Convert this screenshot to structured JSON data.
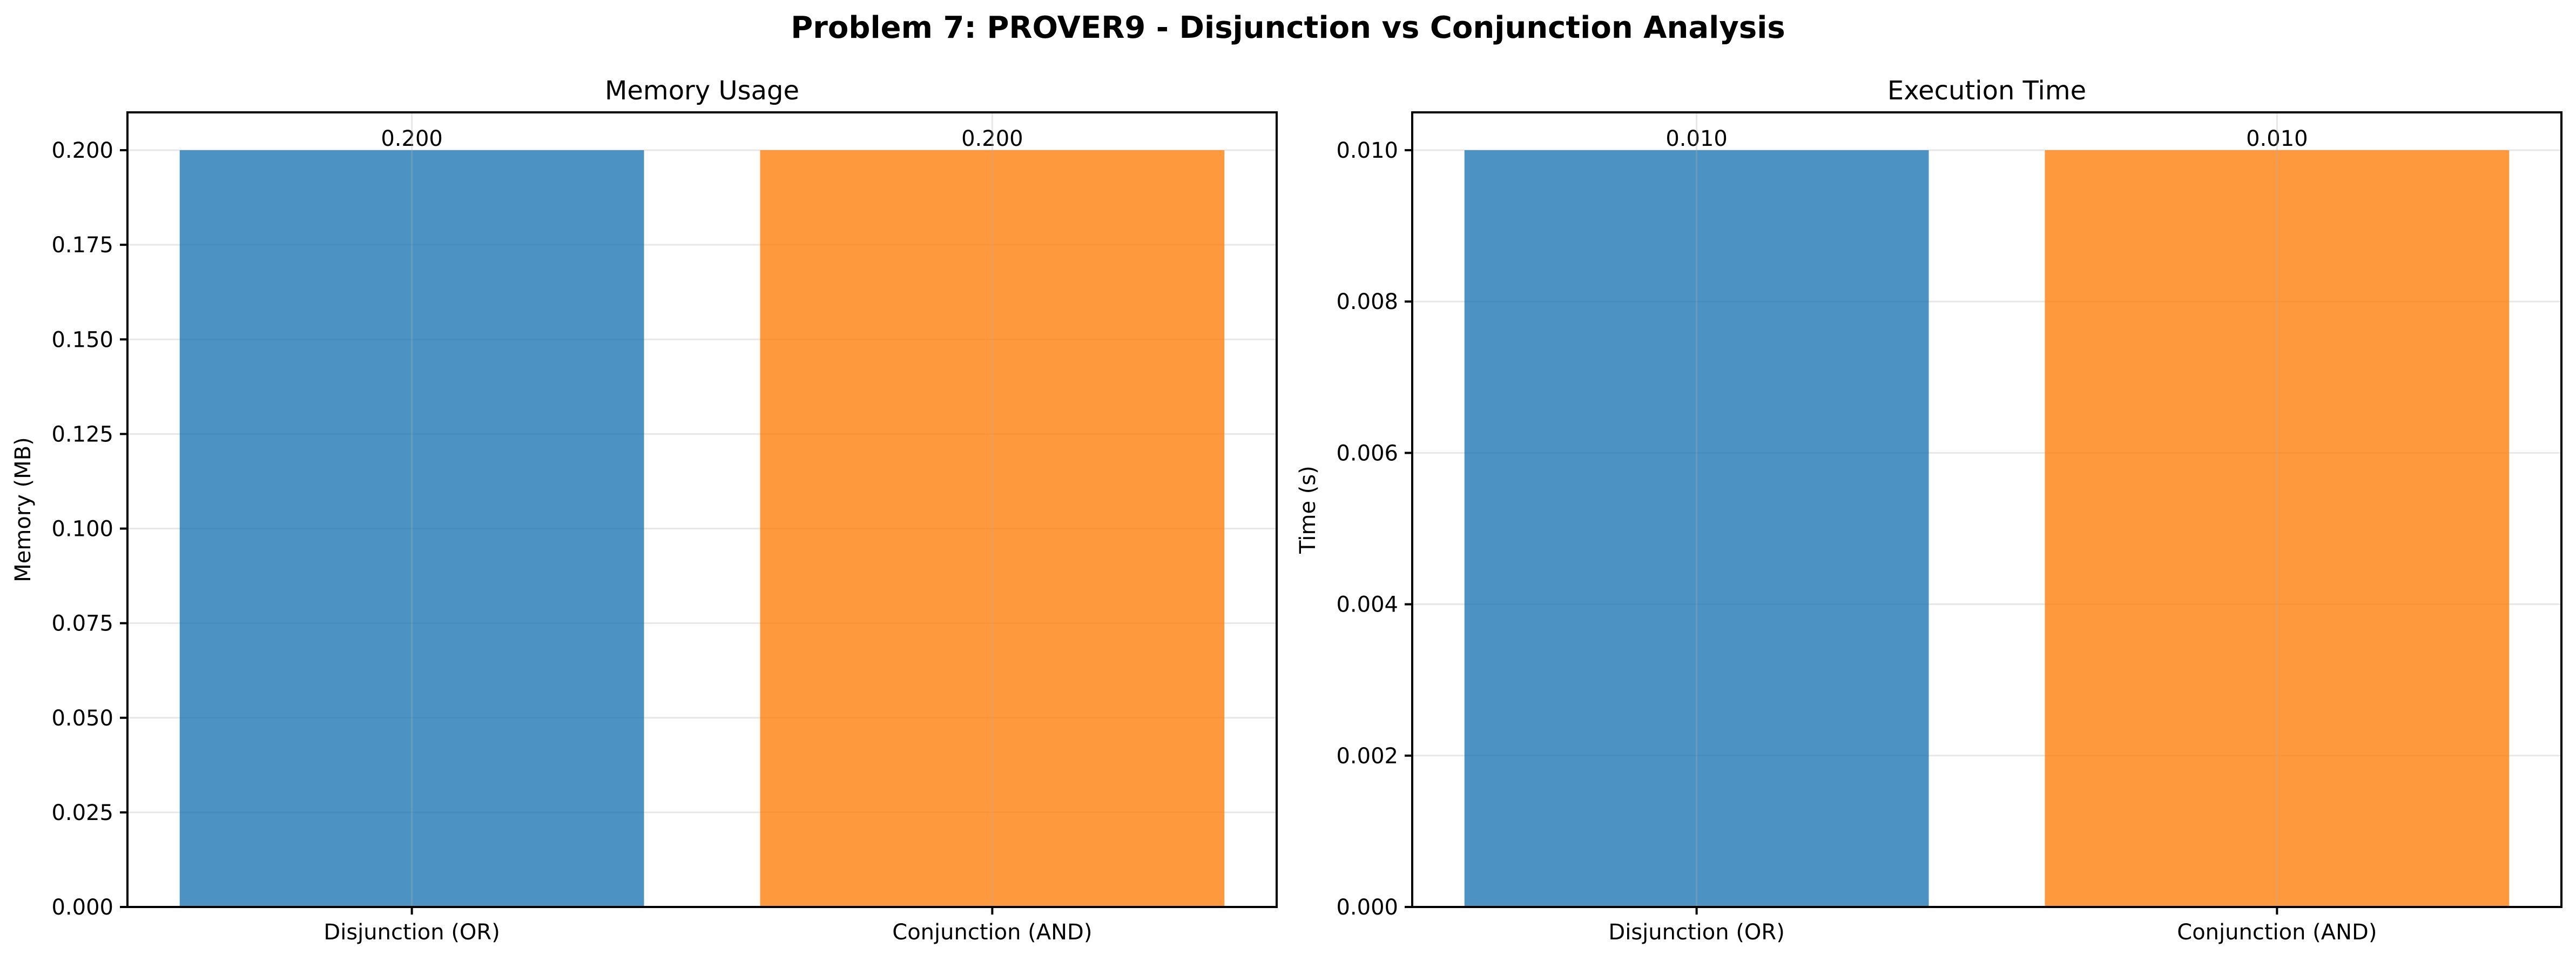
{
  "figure": {
    "title": "Problem 7: PROVER9 - Disjunction vs Conjunction Analysis"
  },
  "colors": {
    "disjunction": "#1f77b4",
    "conjunction": "#ff7f0e"
  },
  "chart_data": [
    {
      "type": "bar",
      "title": "Memory Usage",
      "xlabel": "",
      "ylabel": "Memory (MB)",
      "categories": [
        "Disjunction (OR)",
        "Conjunction (AND)"
      ],
      "values": [
        0.2,
        0.2
      ],
      "data_labels": [
        "0.200",
        "0.200"
      ],
      "ylim": [
        0,
        0.21
      ],
      "yticks": [
        0,
        0.025,
        0.05,
        0.075,
        0.1,
        0.125,
        0.15,
        0.175,
        0.2
      ],
      "ytick_labels": [
        "0.000",
        "0.025",
        "0.050",
        "0.075",
        "0.100",
        "0.125",
        "0.150",
        "0.175",
        "0.200"
      ],
      "grid": true,
      "bar_colors": [
        "#1f77b4",
        "#ff7f0e"
      ]
    },
    {
      "type": "bar",
      "title": "Execution Time",
      "xlabel": "",
      "ylabel": "Time (s)",
      "categories": [
        "Disjunction (OR)",
        "Conjunction (AND)"
      ],
      "values": [
        0.01,
        0.01
      ],
      "data_labels": [
        "0.010",
        "0.010"
      ],
      "ylim": [
        0,
        0.0105
      ],
      "yticks": [
        0,
        0.002,
        0.004,
        0.006,
        0.008,
        0.01
      ],
      "ytick_labels": [
        "0.000",
        "0.002",
        "0.004",
        "0.006",
        "0.008",
        "0.010"
      ],
      "grid": true,
      "bar_colors": [
        "#1f77b4",
        "#ff7f0e"
      ]
    }
  ]
}
